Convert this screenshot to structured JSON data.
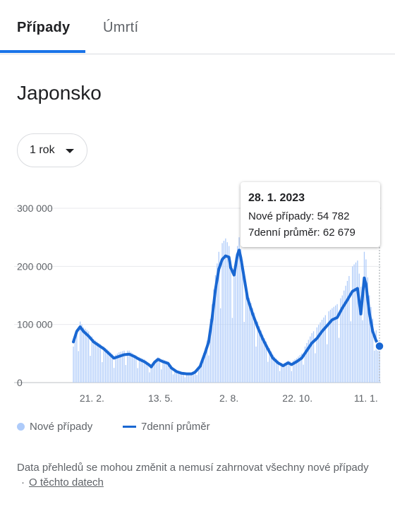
{
  "tabs": [
    {
      "label": "Případy",
      "active": true
    },
    {
      "label": "Úmrtí",
      "active": false
    }
  ],
  "colors": {
    "accent": "#1a73e8",
    "bars": "#aecbfa",
    "line": "#1967d2"
  },
  "title": "Japonsko",
  "period": {
    "label": "1 rok",
    "icon": "caret-down-icon"
  },
  "tooltip": {
    "date": "28. 1. 2023",
    "new_cases_label": "Nové případy:",
    "new_cases_value": "54 782",
    "avg_label": "7denní průměr:",
    "avg_value": "62 679"
  },
  "legend": {
    "bars": "Nové případy",
    "line": "7denní průměr"
  },
  "note": {
    "text": "Data přehledů se mohou změnit a nemusí zahrnovat všechny nové případy",
    "separator": "·",
    "link": "O těchto datech"
  },
  "chart_data": {
    "type": "bar",
    "title": "",
    "xlabel": "",
    "ylabel": "",
    "ylim": [
      0,
      300000
    ],
    "yticks": [
      "0",
      "100 000",
      "200 000",
      "300 000"
    ],
    "ytick_values": [
      0,
      100000,
      200000,
      300000
    ],
    "xticks": [
      "21. 2.",
      "13. 5.",
      "2. 8.",
      "22. 10.",
      "11. 1."
    ],
    "xtick_days": [
      22,
      103,
      184,
      265,
      346
    ],
    "x_start": "30. 1. 2022",
    "x_end": "28. 1. 2023",
    "grid": true,
    "legend_position": "bottom",
    "series": [
      {
        "name": "7denní průměr",
        "kind": "line",
        "points": [
          [
            0,
            70000
          ],
          [
            4,
            88000
          ],
          [
            8,
            96000
          ],
          [
            12,
            88000
          ],
          [
            18,
            80000
          ],
          [
            24,
            70000
          ],
          [
            30,
            64000
          ],
          [
            36,
            58000
          ],
          [
            42,
            50000
          ],
          [
            48,
            42000
          ],
          [
            54,
            45000
          ],
          [
            60,
            48000
          ],
          [
            66,
            49000
          ],
          [
            72,
            45000
          ],
          [
            78,
            40000
          ],
          [
            84,
            36000
          ],
          [
            90,
            30000
          ],
          [
            92,
            27000
          ],
          [
            96,
            35000
          ],
          [
            100,
            40000
          ],
          [
            106,
            36000
          ],
          [
            112,
            33000
          ],
          [
            116,
            25000
          ],
          [
            122,
            19000
          ],
          [
            128,
            16000
          ],
          [
            134,
            15000
          ],
          [
            140,
            15000
          ],
          [
            144,
            18000
          ],
          [
            150,
            28000
          ],
          [
            156,
            52000
          ],
          [
            160,
            70000
          ],
          [
            164,
            110000
          ],
          [
            168,
            160000
          ],
          [
            172,
            195000
          ],
          [
            176,
            212000
          ],
          [
            180,
            218000
          ],
          [
            184,
            216000
          ],
          [
            186,
            198000
          ],
          [
            190,
            185000
          ],
          [
            194,
            220000
          ],
          [
            196,
            228000
          ],
          [
            198,
            215000
          ],
          [
            202,
            180000
          ],
          [
            206,
            145000
          ],
          [
            212,
            118000
          ],
          [
            218,
            95000
          ],
          [
            224,
            75000
          ],
          [
            230,
            58000
          ],
          [
            236,
            42000
          ],
          [
            242,
            34000
          ],
          [
            248,
            29000
          ],
          [
            254,
            34000
          ],
          [
            258,
            31000
          ],
          [
            264,
            36000
          ],
          [
            270,
            42000
          ],
          [
            276,
            55000
          ],
          [
            282,
            68000
          ],
          [
            288,
            76000
          ],
          [
            294,
            88000
          ],
          [
            300,
            98000
          ],
          [
            306,
            108000
          ],
          [
            312,
            112000
          ],
          [
            318,
            128000
          ],
          [
            324,
            142000
          ],
          [
            330,
            157000
          ],
          [
            336,
            162000
          ],
          [
            340,
            118000
          ],
          [
            344,
            180000
          ],
          [
            346,
            170000
          ],
          [
            350,
            120000
          ],
          [
            354,
            88000
          ],
          [
            358,
            72000
          ],
          [
            362,
            62679
          ]
        ]
      },
      {
        "name": "Nové případy",
        "kind": "bar",
        "points": [
          [
            0,
            62000
          ],
          [
            4,
            92000
          ],
          [
            8,
            105000
          ],
          [
            12,
            95000
          ],
          [
            18,
            88000
          ],
          [
            24,
            75000
          ],
          [
            30,
            68000
          ],
          [
            36,
            62000
          ],
          [
            42,
            55000
          ],
          [
            48,
            46000
          ],
          [
            54,
            52000
          ],
          [
            60,
            55000
          ],
          [
            66,
            55000
          ],
          [
            72,
            48000
          ],
          [
            78,
            44000
          ],
          [
            84,
            40000
          ],
          [
            90,
            32000
          ],
          [
            92,
            28000
          ],
          [
            96,
            38000
          ],
          [
            100,
            44000
          ],
          [
            106,
            40000
          ],
          [
            112,
            36000
          ],
          [
            116,
            28000
          ],
          [
            122,
            21000
          ],
          [
            128,
            18000
          ],
          [
            134,
            16000
          ],
          [
            140,
            16000
          ],
          [
            144,
            20000
          ],
          [
            150,
            32000
          ],
          [
            156,
            60000
          ],
          [
            160,
            85000
          ],
          [
            164,
            135000
          ],
          [
            168,
            185000
          ],
          [
            172,
            225000
          ],
          [
            176,
            240000
          ],
          [
            180,
            248000
          ],
          [
            184,
            235000
          ],
          [
            186,
            210000
          ],
          [
            190,
            195000
          ],
          [
            194,
            235000
          ],
          [
            196,
            250000
          ],
          [
            198,
            230000
          ],
          [
            202,
            190000
          ],
          [
            206,
            155000
          ],
          [
            212,
            128000
          ],
          [
            218,
            105000
          ],
          [
            224,
            82000
          ],
          [
            230,
            65000
          ],
          [
            236,
            48000
          ],
          [
            242,
            38000
          ],
          [
            248,
            32000
          ],
          [
            254,
            38000
          ],
          [
            258,
            36000
          ],
          [
            264,
            42000
          ],
          [
            270,
            50000
          ],
          [
            276,
            68000
          ],
          [
            282,
            85000
          ],
          [
            288,
            95000
          ],
          [
            294,
            108000
          ],
          [
            300,
            120000
          ],
          [
            306,
            128000
          ],
          [
            312,
            135000
          ],
          [
            318,
            150000
          ],
          [
            324,
            175000
          ],
          [
            330,
            200000
          ],
          [
            336,
            210000
          ],
          [
            340,
            165000
          ],
          [
            344,
            225000
          ],
          [
            346,
            212000
          ],
          [
            350,
            150000
          ],
          [
            354,
            110000
          ],
          [
            358,
            90000
          ],
          [
            362,
            54782
          ]
        ]
      }
    ]
  }
}
